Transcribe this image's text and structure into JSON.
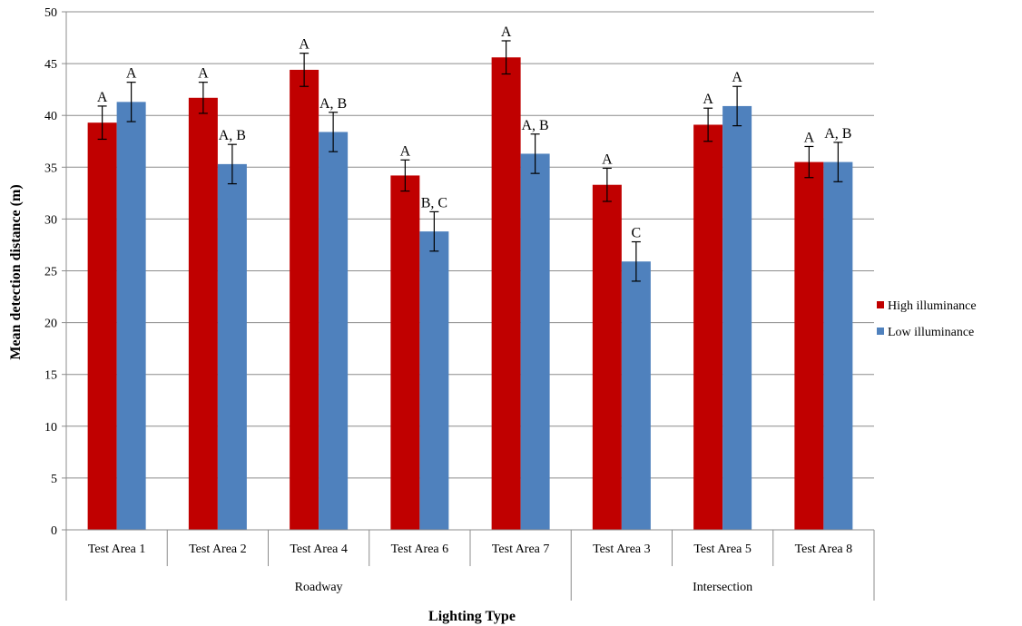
{
  "chart_data": {
    "type": "bar",
    "title": "",
    "xlabel": "Lighting Type",
    "ylabel": "Mean detection distance (m)",
    "ylim": [
      0,
      50
    ],
    "yticks": [
      0,
      5,
      10,
      15,
      20,
      25,
      30,
      35,
      40,
      45,
      50
    ],
    "grid": true,
    "legend_position": "right",
    "categories": [
      "Test Area 1",
      "Test Area 2",
      "Test Area 4",
      "Test Area 6",
      "Test Area 7",
      "Test Area 3",
      "Test Area 5",
      "Test Area 8"
    ],
    "groups": [
      {
        "label": "Roadway",
        "categories": [
          "Test Area 1",
          "Test Area 2",
          "Test Area 4",
          "Test Area 6",
          "Test Area 7"
        ]
      },
      {
        "label": "Intersection",
        "categories": [
          "Test Area 3",
          "Test Area 5",
          "Test Area 8"
        ]
      }
    ],
    "series": [
      {
        "name": "High illuminance",
        "color": "#c00000",
        "values": [
          39.3,
          41.7,
          44.4,
          34.2,
          45.6,
          33.3,
          39.1,
          35.5
        ],
        "errors": [
          1.6,
          1.5,
          1.6,
          1.5,
          1.6,
          1.6,
          1.6,
          1.5
        ],
        "labels": [
          "A",
          "A",
          "A",
          "A",
          "A",
          "A",
          "A",
          "A"
        ]
      },
      {
        "name": "Low illuminance",
        "color": "#4f81bd",
        "values": [
          41.3,
          35.3,
          38.4,
          28.8,
          36.3,
          25.9,
          40.9,
          35.5
        ],
        "errors": [
          1.9,
          1.9,
          1.9,
          1.9,
          1.9,
          1.9,
          1.9,
          1.9
        ],
        "labels": [
          "A",
          "A, B",
          "A, B",
          "B, C",
          "A, B",
          "C",
          "A",
          "A, B"
        ]
      }
    ]
  }
}
